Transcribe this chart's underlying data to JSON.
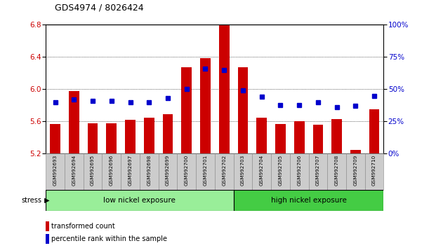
{
  "title": "GDS4974 / 8026424",
  "samples": [
    "GSM992693",
    "GSM992694",
    "GSM992695",
    "GSM992696",
    "GSM992697",
    "GSM992698",
    "GSM992699",
    "GSM992700",
    "GSM992701",
    "GSM992702",
    "GSM992703",
    "GSM992704",
    "GSM992705",
    "GSM992706",
    "GSM992707",
    "GSM992708",
    "GSM992709",
    "GSM992710"
  ],
  "transformed_count": [
    5.57,
    5.98,
    5.58,
    5.58,
    5.62,
    5.65,
    5.69,
    6.27,
    6.39,
    6.8,
    6.27,
    5.65,
    5.57,
    5.6,
    5.56,
    5.63,
    5.25,
    5.75
  ],
  "percentile_rank": [
    40,
    42,
    41,
    41,
    40,
    40,
    43,
    50,
    66,
    65,
    49,
    44,
    38,
    38,
    40,
    36,
    37,
    45
  ],
  "ylim_left": [
    5.2,
    6.8
  ],
  "ylim_right": [
    0,
    100
  ],
  "yticks_left": [
    5.2,
    5.6,
    6.0,
    6.4,
    6.8
  ],
  "yticks_right": [
    0,
    25,
    50,
    75,
    100
  ],
  "bar_color": "#cc0000",
  "dot_color": "#0000cc",
  "bar_bottom": 5.2,
  "group_boundary": 9.5,
  "group1_label": "low nickel exposure",
  "group2_label": "high nickel exposure",
  "group1_color": "#99ee99",
  "group2_color": "#44cc44",
  "stress_label": "stress",
  "legend_bar_label": "transformed count",
  "legend_dot_label": "percentile rank within the sample",
  "title_fontsize": 9,
  "axis_label_color_left": "#cc0000",
  "axis_label_color_right": "#0000cc",
  "tick_label_bg": "#cccccc",
  "n_low": 10,
  "n_high": 8
}
